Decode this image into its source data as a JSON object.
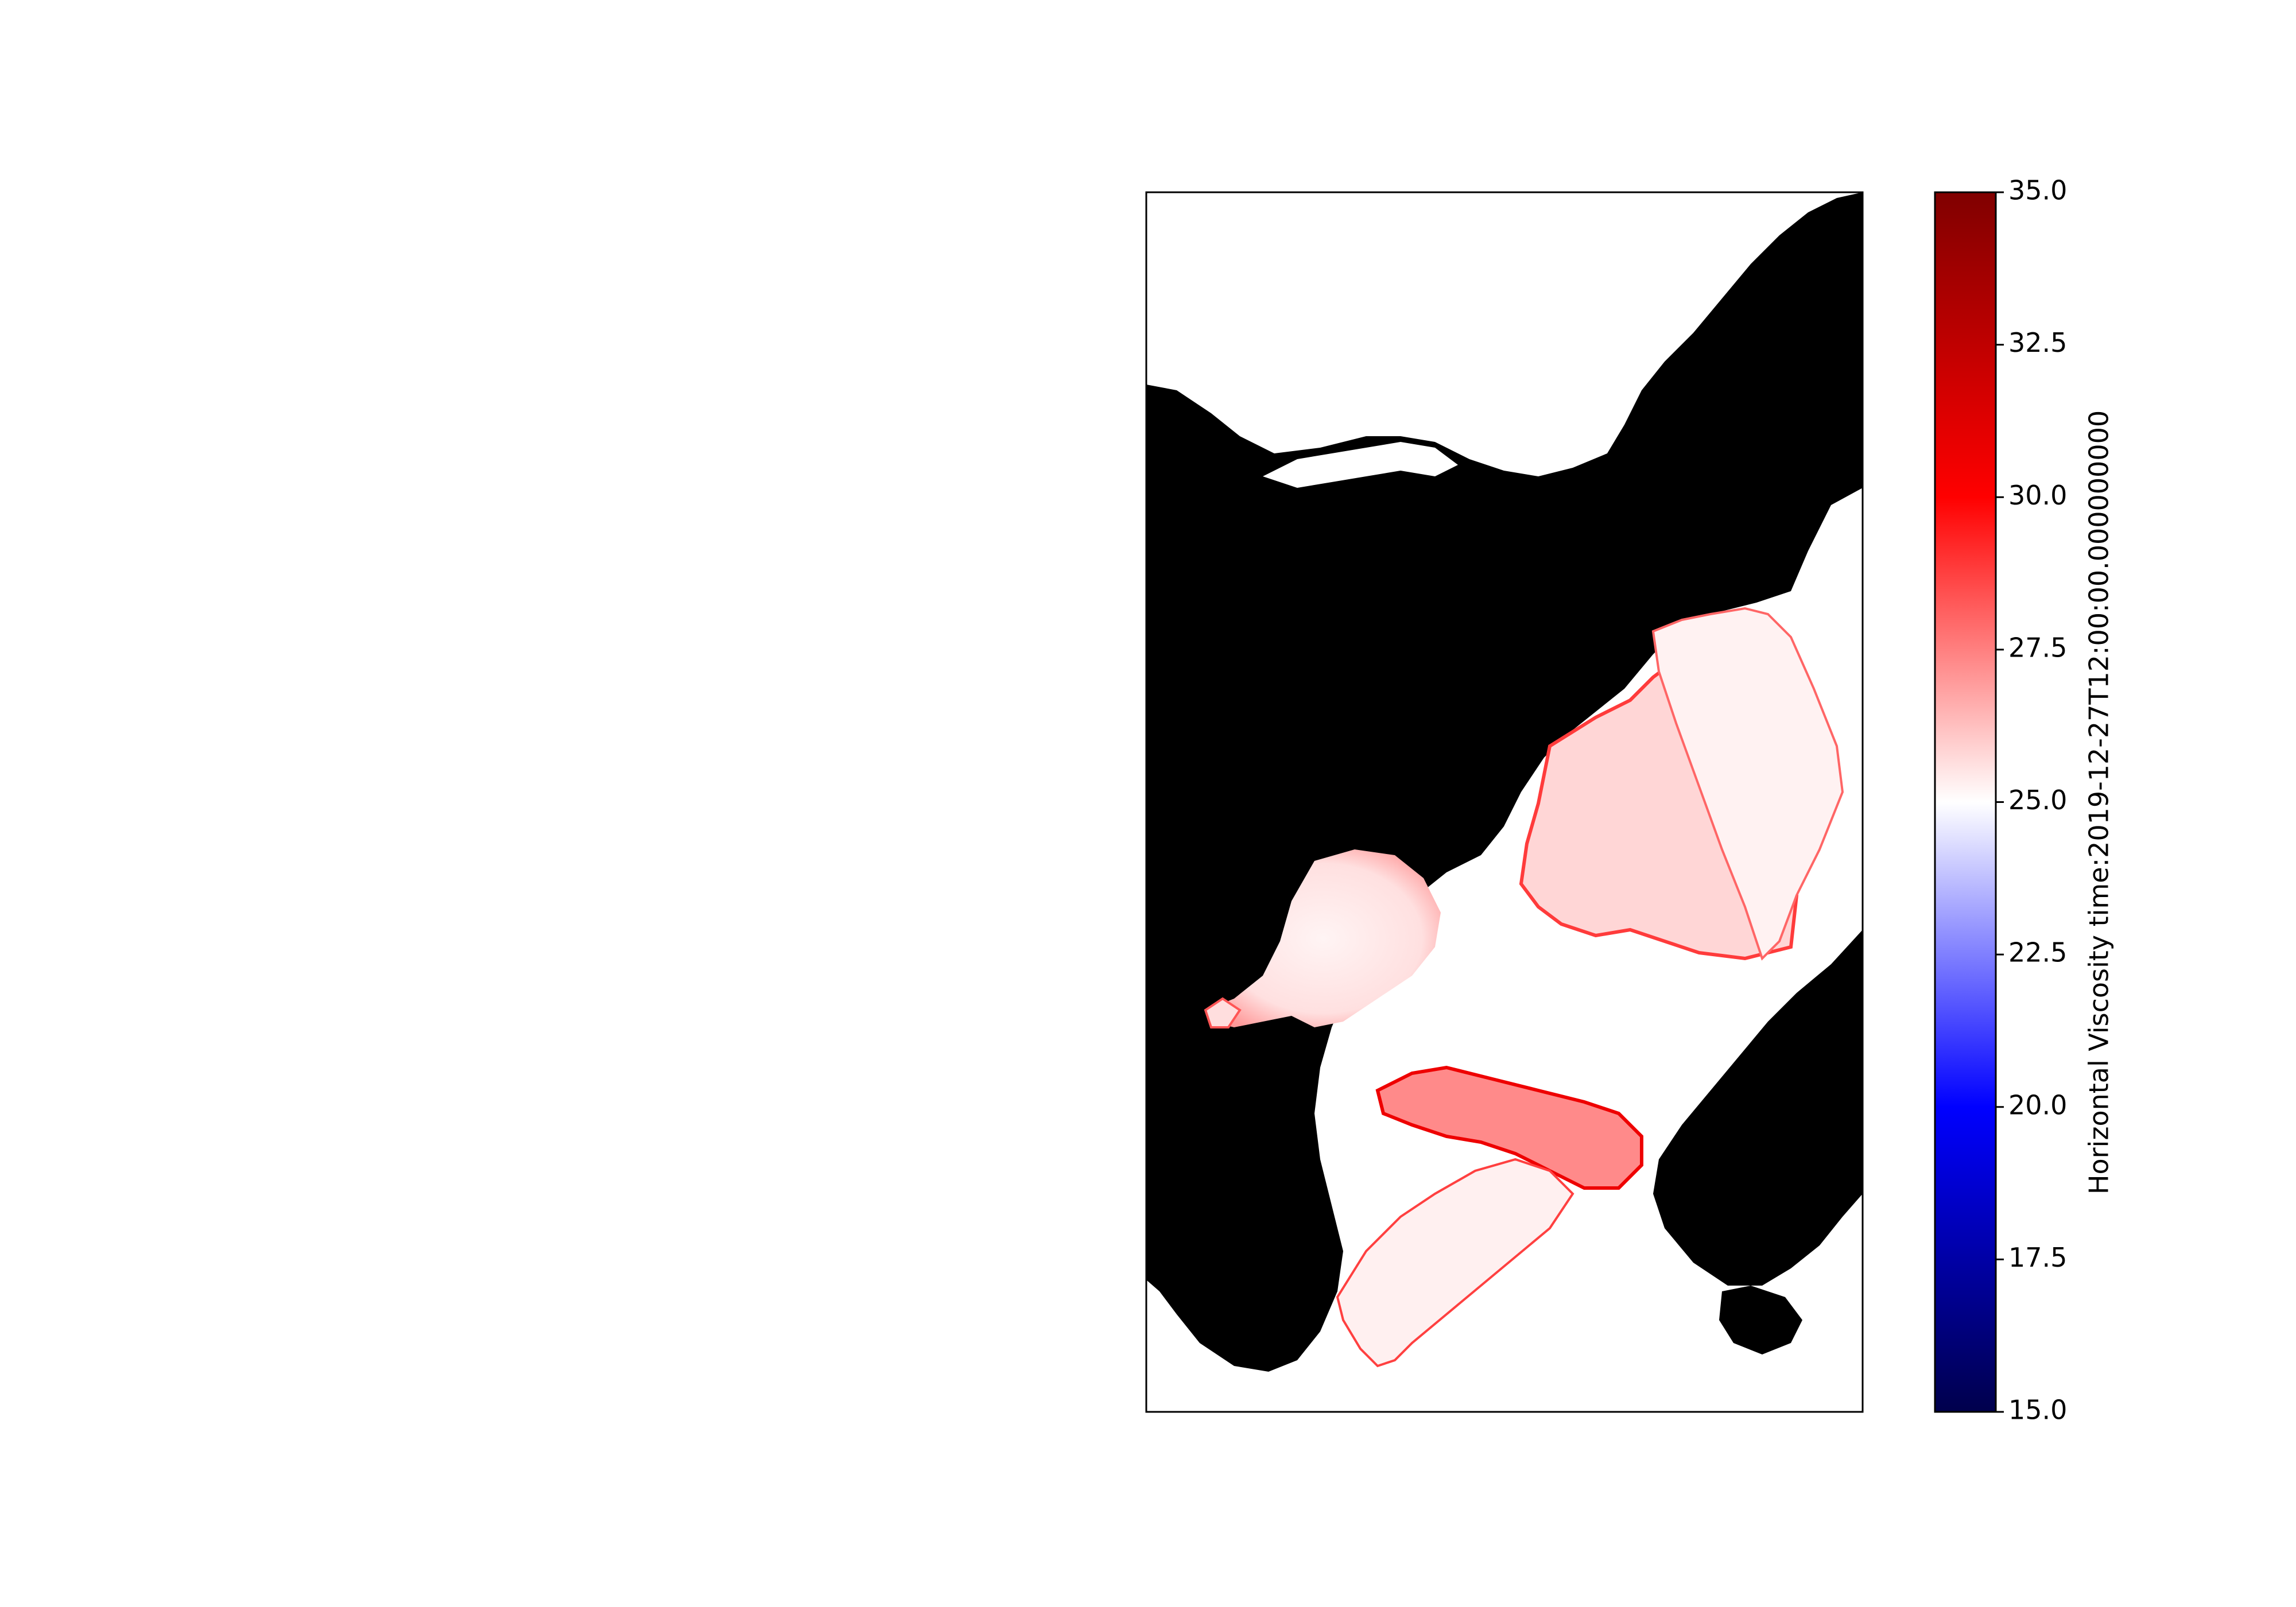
{
  "colorbar": {
    "label": "Horizontal Viscosity time:2019-12-27T12:00:00.000000000",
    "min": 15.0,
    "max": 35.0,
    "ticks": [
      "15.0",
      "17.5",
      "20.0",
      "22.5",
      "25.0",
      "27.5",
      "30.0",
      "32.5",
      "35.0"
    ],
    "colormap": "seismic",
    "colormap_stops": [
      "#00004c",
      "#0000ff",
      "#ffffff",
      "#ff0000",
      "#800000"
    ]
  },
  "map": {
    "land_color": "#000000",
    "no_data_color": "#ffffff"
  }
}
